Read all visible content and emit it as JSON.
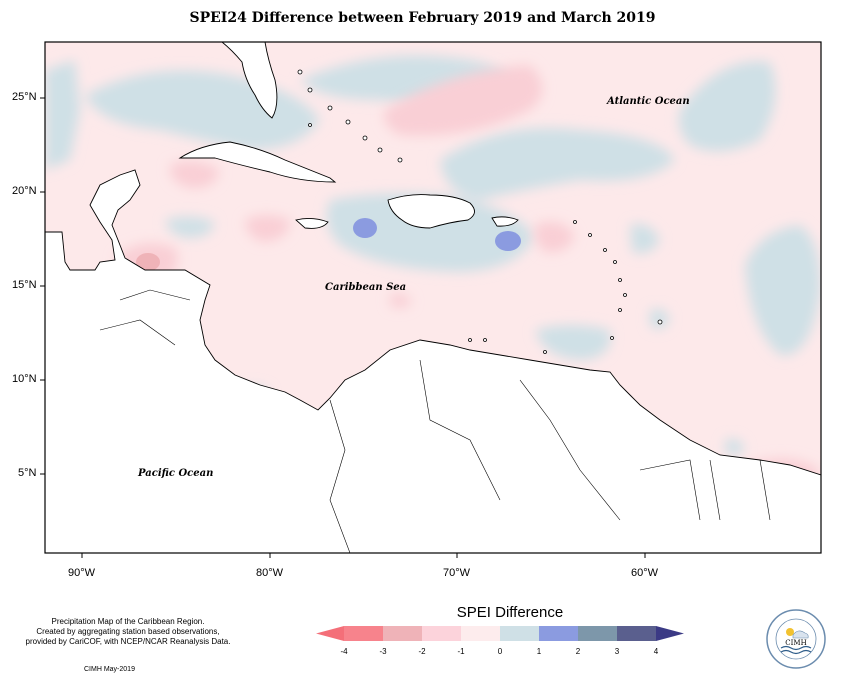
{
  "title": "SPEI24 Difference between February 2019 and March 2019",
  "map": {
    "lat_ticks": [
      "25°N",
      "20°N",
      "15°N",
      "10°N",
      "5°N"
    ],
    "lon_ticks": [
      "90°W",
      "80°W",
      "70°W",
      "60°W"
    ],
    "labels": {
      "atlantic": "Atlantic Ocean",
      "caribbean": "Caribbean Sea",
      "pacific": "Pacific Ocean"
    },
    "colors": {
      "neg_weak": "#fde9ea",
      "neg_mid": "#f9cfd5",
      "pos_weak": "#cfe0e6",
      "pos_strong": "#8b9be0"
    }
  },
  "footer": {
    "line1": "Precipitation Map of the Caribbean Region.",
    "line2": "Created by aggregating station based observations,",
    "line3": "provided by CariCOF, with NCEP/NCAR Reanalysis Data.",
    "credit": "CIMH May-2019"
  },
  "legend": {
    "title": "SPEI Difference",
    "ticks": [
      "-4",
      "-3",
      "-2",
      "-1",
      "0",
      "1",
      "2",
      "3",
      "4"
    ],
    "colors": [
      "#f7838c",
      "#efb3b8",
      "#fcd3db",
      "#fdeced",
      "#cfe0e6",
      "#8b9be0",
      "#7d97aa",
      "#5a5f8e"
    ],
    "end_low_color": "#f46f79",
    "end_high_color": "#3b3a85"
  },
  "logo": {
    "text": "CIMH"
  }
}
